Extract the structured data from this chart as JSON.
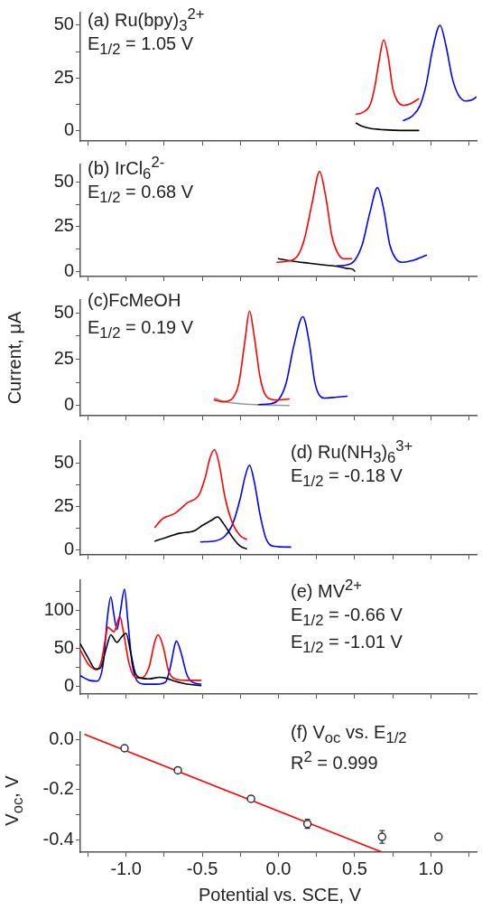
{
  "chart_data": [
    {
      "type": "line",
      "xlim": [
        -1.3,
        1.3
      ],
      "xticks": [
        {
          "value": -1.25,
          "label": null
        },
        {
          "value": -1,
          "label": null
        },
        {
          "value": -0.75,
          "label": null
        },
        {
          "value": -0.5,
          "label": null
        },
        {
          "value": -0.25,
          "label": null
        },
        {
          "value": 0,
          "label": null
        },
        {
          "value": 0.25,
          "label": null
        },
        {
          "value": 0.5,
          "label": null
        },
        {
          "value": 0.75,
          "label": null
        },
        {
          "value": 1,
          "label": null
        },
        {
          "value": 1.25,
          "label": null
        }
      ],
      "ylim": [
        -5,
        56
      ],
      "yticks": [
        0,
        {
          "value": 12.5,
          "label": null
        },
        25,
        {
          "value": 37.5,
          "label": null
        },
        50
      ],
      "tick_labels": "y",
      "marker": "none",
      "annotations": [
        "(a) Ru(bpy)$_{3}$$^{2+}$",
        "E$_{1/2}$ = 1.05 V"
      ],
      "series": [
        {
          "color": "#ff0000",
          "x": [
            0.51,
            0.55,
            0.6,
            0.63,
            0.66,
            0.69,
            0.72,
            0.75,
            0.78,
            0.82,
            0.86,
            0.92
          ],
          "values": [
            7.7,
            8.5,
            12,
            20,
            33,
            43,
            35,
            20,
            14,
            12,
            12.5,
            15
          ]
        },
        {
          "color": "#0000ff",
          "x": [
            0.82,
            0.88,
            0.93,
            0.97,
            1.01,
            1.06,
            1.1,
            1.14,
            1.18,
            1.23,
            1.27,
            1.3
          ],
          "values": [
            4.7,
            7,
            12,
            22,
            38,
            50,
            40,
            25,
            17,
            14,
            14.5,
            16
          ]
        },
        {
          "color": "#000000",
          "x": [
            0.51,
            0.55,
            0.6,
            0.7,
            0.8,
            0.92
          ],
          "values": [
            3.5,
            2,
            1,
            0.3,
            0,
            0
          ]
        }
      ]
    },
    {
      "type": "line",
      "xlim": [
        -1.3,
        1.3
      ],
      "xticks": [
        {
          "value": -1.25,
          "label": null
        },
        {
          "value": -1,
          "label": null
        },
        {
          "value": -0.75,
          "label": null
        },
        {
          "value": -0.5,
          "label": null
        },
        {
          "value": -0.25,
          "label": null
        },
        {
          "value": 0,
          "label": null
        },
        {
          "value": 0.25,
          "label": null
        },
        {
          "value": 0.5,
          "label": null
        },
        {
          "value": 0.75,
          "label": null
        },
        {
          "value": 1,
          "label": null
        },
        {
          "value": 1.25,
          "label": null
        }
      ],
      "ylim": [
        -3,
        60
      ],
      "yticks": [
        0,
        {
          "value": 12.5,
          "label": null
        },
        25,
        {
          "value": 37.5,
          "label": null
        },
        50
      ],
      "tick_labels": "y",
      "marker": "none",
      "annotations": [
        "(b) IrCl$_{6}$$^{2-}$",
        "E$_{1/2}$ = 0.68 V"
      ],
      "series": [
        {
          "color": "#ff0000",
          "x": [
            -0.01,
            0.05,
            0.12,
            0.17,
            0.22,
            0.27,
            0.31,
            0.35,
            0.39,
            0.43,
            0.48
          ],
          "values": [
            5,
            5.5,
            8,
            18,
            38,
            56,
            42,
            20,
            10,
            7,
            7
          ]
        },
        {
          "color": "#0000ff",
          "x": [
            0.38,
            0.45,
            0.5,
            0.55,
            0.6,
            0.65,
            0.69,
            0.73,
            0.77,
            0.81,
            0.88,
            0.97
          ],
          "values": [
            3,
            3.5,
            6,
            15,
            33,
            47,
            35,
            15,
            7,
            5,
            6,
            9
          ]
        },
        {
          "color": "#000000",
          "x": [
            0,
            0.1,
            0.2,
            0.3,
            0.4,
            0.45,
            0.49,
            0.5
          ],
          "values": [
            7,
            5.5,
            4.5,
            3.5,
            2.5,
            1.5,
            1,
            0
          ]
        }
      ]
    },
    {
      "type": "line",
      "xlim": [
        -1.3,
        1.3
      ],
      "xticks": [
        {
          "value": -1.25,
          "label": null
        },
        {
          "value": -1,
          "label": null
        },
        {
          "value": -0.75,
          "label": null
        },
        {
          "value": -0.5,
          "label": null
        },
        {
          "value": -0.25,
          "label": null
        },
        {
          "value": 0,
          "label": null
        },
        {
          "value": 0.25,
          "label": null
        },
        {
          "value": 0.5,
          "label": null
        },
        {
          "value": 0.75,
          "label": null
        },
        {
          "value": 1,
          "label": null
        },
        {
          "value": 1.25,
          "label": null
        }
      ],
      "ylim": [
        -5.5,
        57
      ],
      "yticks": [
        0,
        {
          "value": 12.5,
          "label": null
        },
        25,
        {
          "value": 37.5,
          "label": null
        },
        50
      ],
      "tick_labels": "y",
      "marker": "none",
      "ylabel": "Current, μA",
      "annotations": [
        "(c)FcMeOH",
        "E$_{1/2}$ = 0.19 V"
      ],
      "series": [
        {
          "color": "#ff0000",
          "x": [
            -0.42,
            -0.36,
            -0.3,
            -0.26,
            -0.22,
            -0.19,
            -0.16,
            -0.12,
            -0.08,
            -0.02,
            0.07
          ],
          "values": [
            3,
            2,
            4,
            12,
            35,
            51,
            38,
            15,
            5,
            3,
            3.5
          ]
        },
        {
          "color": "#0000ff",
          "x": [
            -0.13,
            -0.05,
            0,
            0.05,
            0.1,
            0.16,
            0.2,
            0.24,
            0.3,
            0.38,
            0.45
          ],
          "values": [
            0.5,
            1,
            3,
            12,
            32,
            48,
            35,
            12,
            4,
            4.5,
            5
          ]
        },
        {
          "color": "#999999",
          "x": [
            -0.42,
            -0.35,
            -0.25,
            -0.1,
            0.07
          ],
          "values": [
            4,
            2,
            1,
            0.3,
            0
          ]
        }
      ]
    },
    {
      "type": "line",
      "xlim": [
        -1.3,
        1.3
      ],
      "xticks": [
        {
          "value": -1.25,
          "label": null
        },
        {
          "value": -1,
          "label": null
        },
        {
          "value": -0.75,
          "label": null
        },
        {
          "value": -0.5,
          "label": null
        },
        {
          "value": -0.25,
          "label": null
        },
        {
          "value": 0,
          "label": null
        },
        {
          "value": 0.25,
          "label": null
        },
        {
          "value": 0.5,
          "label": null
        },
        {
          "value": 0.75,
          "label": null
        },
        {
          "value": 1,
          "label": null
        },
        {
          "value": 1.25,
          "label": null
        }
      ],
      "ylim": [
        -3,
        63
      ],
      "yticks": [
        0,
        {
          "value": 12.5,
          "label": null
        },
        25,
        {
          "value": 37.5,
          "label": null
        },
        50
      ],
      "tick_labels": "y",
      "marker": "none",
      "annotations": [
        "(d) Ru(NH$_{3}$)$_{6}$$^{3+}$",
        "E$_{1/2}$ = -0.18 V"
      ],
      "series": [
        {
          "color": "#ff0000",
          "x": [
            -0.81,
            -0.76,
            -0.68,
            -0.6,
            -0.52,
            -0.48,
            -0.45,
            -0.42,
            -0.39,
            -0.35,
            -0.3,
            -0.25,
            -0.21
          ],
          "values": [
            13,
            18,
            21,
            27,
            32,
            42,
            53,
            58,
            50,
            30,
            15,
            8,
            6
          ]
        },
        {
          "color": "#000000",
          "x": [
            -0.81,
            -0.74,
            -0.65,
            -0.55,
            -0.5,
            -0.44,
            -0.4,
            -0.36,
            -0.3,
            -0.25,
            -0.21
          ],
          "values": [
            5,
            7,
            9.5,
            11,
            14,
            17,
            19,
            15,
            7,
            2,
            0.5
          ]
        },
        {
          "color": "#0000ff",
          "x": [
            -0.51,
            -0.42,
            -0.35,
            -0.3,
            -0.25,
            -0.22,
            -0.19,
            -0.16,
            -0.12,
            -0.08,
            -0.03,
            0.08
          ],
          "values": [
            4.5,
            5,
            8,
            15,
            30,
            42,
            49,
            40,
            20,
            6,
            2,
            1.5
          ]
        }
      ]
    },
    {
      "type": "line",
      "xlim": [
        -1.3,
        1.3
      ],
      "xticks": [
        {
          "value": -1.25,
          "label": null
        },
        {
          "value": -1,
          "label": null
        },
        {
          "value": -0.75,
          "label": null
        },
        {
          "value": -0.5,
          "label": null
        },
        {
          "value": -0.25,
          "label": null
        },
        {
          "value": 0,
          "label": null
        },
        {
          "value": 0.25,
          "label": null
        },
        {
          "value": 0.5,
          "label": null
        },
        {
          "value": 0.75,
          "label": null
        },
        {
          "value": 1,
          "label": null
        },
        {
          "value": 1.25,
          "label": null
        }
      ],
      "ylim": [
        -10,
        140
      ],
      "yticks": [
        0,
        {
          "value": 25,
          "label": null
        },
        50,
        {
          "value": 75,
          "label": null
        },
        100,
        {
          "value": 125,
          "label": null
        }
      ],
      "tick_labels": "y",
      "marker": "none",
      "annotations": [
        "(e) MV$^{2+}$",
        "E$_{1/2}$ = -0.66 V",
        "E$_{1/2}$ = -1.01 V"
      ],
      "series": [
        {
          "color": "#000000",
          "x": [
            -1.3,
            -1.25,
            -1.2,
            -1.17,
            -1.13,
            -1.1,
            -1.06,
            -1.03,
            -1,
            -0.97,
            -0.94,
            -0.9,
            -0.85,
            -0.78,
            -0.74,
            -0.68,
            -0.6,
            -0.51
          ],
          "values": [
            56,
            38,
            23,
            24,
            50,
            68,
            58,
            65,
            70,
            45,
            18,
            11,
            10,
            12,
            11,
            7,
            3,
            1
          ]
        },
        {
          "color": "#ff0000",
          "x": [
            -1.3,
            -1.25,
            -1.19,
            -1.16,
            -1.13,
            -1.12,
            -1.08,
            -1.04,
            -1.02,
            -0.98,
            -0.94,
            -0.9,
            -0.85,
            -0.81,
            -0.79,
            -0.76,
            -0.72,
            -0.68,
            -0.6,
            -0.51
          ],
          "values": [
            48,
            30,
            22,
            35,
            70,
            78,
            72,
            92,
            75,
            30,
            12,
            11,
            25,
            60,
            68,
            55,
            20,
            10,
            8,
            8
          ]
        },
        {
          "color": "#0000ff",
          "x": [
            -1.3,
            -1.24,
            -1.19,
            -1.15,
            -1.12,
            -1.1,
            -1.08,
            -1.06,
            -1.04,
            -1.01,
            -0.99,
            -0.96,
            -0.93,
            -0.88,
            -0.8,
            -0.74,
            -0.71,
            -0.68,
            -0.67,
            -0.64,
            -0.6,
            -0.56,
            -0.51
          ],
          "values": [
            14,
            8,
            7,
            30,
            95,
            118,
            95,
            75,
            95,
            128,
            90,
            30,
            8,
            3,
            3,
            6,
            25,
            55,
            60,
            45,
            15,
            5,
            3
          ]
        }
      ]
    },
    {
      "type": "scatter",
      "xlim": [
        -1.3,
        1.3
      ],
      "xticks": [
        {
          "value": -1.25,
          "label": null
        },
        {
          "value": -1,
          "label": "-1.0"
        },
        {
          "value": -0.75,
          "label": null
        },
        {
          "value": -0.5,
          "label": "-0.5"
        },
        {
          "value": -0.25,
          "label": null
        },
        {
          "value": 0,
          "label": "0.0"
        },
        {
          "value": 0.25,
          "label": null
        },
        {
          "value": 0.5,
          "label": "0.5"
        },
        {
          "value": 0.75,
          "label": null
        },
        {
          "value": 1,
          "label": "1.0"
        },
        {
          "value": 1.25,
          "label": null
        }
      ],
      "ylim": [
        -0.45,
        0.03
      ],
      "yticks": [
        {
          "value": 0,
          "label": "0.0"
        },
        {
          "value": -0.1,
          "label": null
        },
        {
          "value": -0.2,
          "label": "-0.2"
        },
        {
          "value": -0.3,
          "label": null
        },
        {
          "value": -0.4,
          "label": "-0.4"
        }
      ],
      "marker": "circle",
      "xlabel": "Potential vs. SCE, V",
      "ylabel": "V$_{oc}$, V",
      "annotations": [
        "(f) V$_{oc}$ vs. E$_{1/2}$",
        "R$^{2}$ = 0.999"
      ],
      "series": [
        {
          "type": "line",
          "marker": "none",
          "color": "#ff0000",
          "x": [
            -1.27,
            0.68
          ],
          "values": [
            0.02,
            -0.45
          ]
        },
        {
          "color": "#333333",
          "x": [
            -1.01,
            -0.66,
            -0.18,
            0.19,
            0.68,
            1.05
          ],
          "values": [
            -0.035,
            -0.123,
            -0.237,
            -0.337,
            -0.389,
            -0.389
          ],
          "errors": [
            null,
            null,
            null,
            0.018,
            0.025,
            null
          ]
        }
      ]
    }
  ]
}
